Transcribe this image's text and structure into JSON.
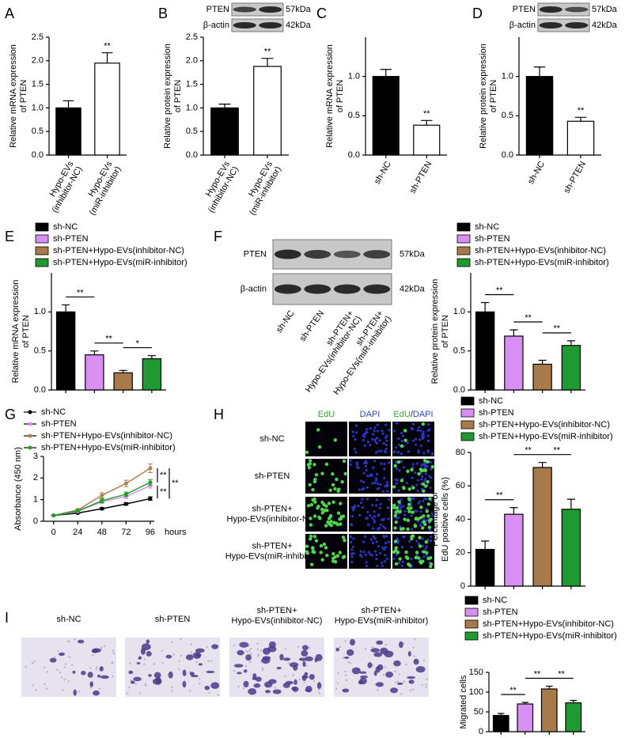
{
  "panel_labels": [
    "A",
    "B",
    "C",
    "D",
    "E",
    "F",
    "G",
    "H",
    "I"
  ],
  "blots": [
    {
      "bands": [
        "PTEN",
        "β-actin"
      ],
      "sizes": [
        "57kDa",
        "42kDa"
      ]
    },
    {
      "bands": [
        "PTEN",
        "β-actin"
      ],
      "sizes": [
        "57kDa",
        "42kDa"
      ]
    },
    {
      "bands": [
        "PTEN",
        "β-actin"
      ],
      "sizes": [
        "57kDa",
        "42kDa"
      ],
      "lanes": [
        [
          "sh-NC"
        ],
        [
          "sh-PTEN"
        ],
        [
          "sh-PTEN+",
          "Hypo-EVs(inhibitor-NC)"
        ],
        [
          "sh-PTEN+",
          "Hypo-EVs(miR-inhibitor)"
        ]
      ]
    }
  ],
  "edu": {
    "columns": [
      [
        "EdU"
      ],
      [
        "DAPI"
      ],
      [
        "EdU",
        "/",
        "DAPI"
      ]
    ],
    "rows": [
      [
        "sh-NC"
      ],
      [
        "sh-PTEN"
      ],
      [
        "sh-PTEN+",
        "Hypo-EVs(inhibitor-NC)"
      ],
      [
        "sh-PTEN+",
        "Hypo-EVs(miR-inhibitor)"
      ]
    ]
  },
  "transwell": {
    "labels": [
      [
        "sh-NC"
      ],
      [
        "sh-PTEN"
      ],
      [
        "sh-PTEN+",
        "Hypo-EVs(inhibitor-NC)"
      ],
      [
        "sh-PTEN+",
        "Hypo-EVs(miR-inhibitor)"
      ]
    ]
  },
  "chart_data": [
    {
      "type": "bar",
      "ylabel": [
        "Relative mRNA expression",
        "of PTEN"
      ],
      "categories": [
        [
          "Hypo-EVs",
          "(inhibitor-NC)"
        ],
        [
          "Hypo-EVs",
          "(miR-inhibitor)"
        ]
      ],
      "values": [
        1.0,
        1.95
      ],
      "errors": [
        0.15,
        0.22
      ],
      "colors": [
        "#000000",
        "#ffffff"
      ],
      "ylim": [
        0,
        2.5
      ],
      "yticks": [
        {
          "value": 0,
          "label": "0.0"
        },
        0.5,
        {
          "value": 1,
          "label": "1.0"
        },
        1.5,
        {
          "value": 2,
          "label": "2.0"
        },
        2.5
      ],
      "annotations": [
        {
          "text": "**",
          "at": 1
        }
      ]
    },
    {
      "type": "bar",
      "ylabel": [
        "Relative protein expression",
        "of PTEN"
      ],
      "categories": [
        [
          "Hypo-EVs",
          "(inhibitor-NC)"
        ],
        [
          "Hypo-EVs",
          "(miR-inhibitor)"
        ]
      ],
      "values": [
        1.0,
        1.88
      ],
      "errors": [
        0.08,
        0.17
      ],
      "colors": [
        "#000000",
        "#ffffff"
      ],
      "ylim": [
        0,
        2.5
      ],
      "yticks": [
        {
          "value": 0,
          "label": "0.0"
        },
        0.5,
        {
          "value": 1,
          "label": "1.0"
        },
        1.5,
        {
          "value": 2,
          "label": "2.0"
        },
        2.5
      ],
      "annotations": [
        {
          "text": "**",
          "at": 1
        }
      ]
    },
    {
      "type": "bar",
      "ylabel": [
        "Relative mRNA expression",
        "of PTEN"
      ],
      "categories": [
        [
          "sh-NC"
        ],
        [
          "sh-PTEN"
        ]
      ],
      "values": [
        1.0,
        0.38
      ],
      "errors": [
        0.09,
        0.06
      ],
      "colors": [
        "#000000",
        "#ffffff"
      ],
      "ylim": [
        0,
        1.5
      ],
      "yticks": [
        {
          "value": 0,
          "label": "0.0"
        },
        0.5,
        {
          "value": 1,
          "label": "1.0"
        }
      ],
      "annotations": [
        {
          "text": "**",
          "at": 1
        }
      ]
    },
    {
      "type": "bar",
      "ylabel": [
        "Relative protein expression",
        "of PTEN"
      ],
      "categories": [
        [
          "sh-NC"
        ],
        [
          "sh-PTEN"
        ]
      ],
      "values": [
        1.0,
        0.43
      ],
      "errors": [
        0.12,
        0.05
      ],
      "colors": [
        "#000000",
        "#ffffff"
      ],
      "ylim": [
        0,
        1.5
      ],
      "yticks": [
        {
          "value": 0,
          "label": "0.0"
        },
        0.5,
        {
          "value": 1,
          "label": "1.0"
        }
      ],
      "annotations": [
        {
          "text": "**",
          "at": 1
        }
      ]
    },
    {
      "type": "bar",
      "ylabel": [
        "Relative mRNA expression",
        "of PTEN"
      ],
      "legend": "top-left",
      "categories": [
        "sh-NC",
        "sh-PTEN",
        "sh-PTEN+Hypo-EVs(inhibitor-NC)",
        "sh-PTEN+Hypo-EVs(miR-inhibitor)"
      ],
      "values": [
        1.0,
        0.45,
        0.22,
        0.4
      ],
      "errors": [
        0.09,
        0.05,
        0.03,
        0.04
      ],
      "colors": [
        "#000000",
        "#d88ef2",
        "#a87a4a",
        "#1f9a30"
      ],
      "ylim": [
        0,
        1.5
      ],
      "yticks": [
        {
          "value": 0,
          "label": "0.0"
        },
        0.5,
        {
          "value": 1,
          "label": "1.0"
        }
      ],
      "annotations": [
        {
          "text": "**",
          "from": 0,
          "to": 1
        },
        {
          "text": "**",
          "from": 1,
          "to": 2
        },
        {
          "text": "*",
          "from": 2,
          "to": 3
        }
      ]
    },
    {
      "type": "bar",
      "ylabel": [
        "Relative protein expression",
        "of PTEN"
      ],
      "legend": "top-left",
      "categories": [
        "sh-NC",
        "sh-PTEN",
        "sh-PTEN+Hypo-EVs(inhibitor-NC)",
        "sh-PTEN+Hypo-EVs(miR-inhibitor)"
      ],
      "values": [
        1.0,
        0.69,
        0.33,
        0.57
      ],
      "errors": [
        0.12,
        0.08,
        0.05,
        0.06
      ],
      "colors": [
        "#000000",
        "#d88ef2",
        "#a87a4a",
        "#1f9a30"
      ],
      "ylim": [
        0,
        1.5
      ],
      "yticks": [
        {
          "value": 0,
          "label": "0.0"
        },
        0.5,
        {
          "value": 1,
          "label": "1.0"
        }
      ],
      "annotations": [
        {
          "text": "**",
          "from": 0,
          "to": 1
        },
        {
          "text": "**",
          "from": 1,
          "to": 2
        },
        {
          "text": "**",
          "from": 2,
          "to": 3
        }
      ]
    },
    {
      "type": "line",
      "ylabel": [
        "Absorbance (450 nm)"
      ],
      "xlabel": "hours",
      "legend": "top-left",
      "x": [
        0,
        24,
        48,
        72,
        96
      ],
      "xlim": [
        -10,
        100
      ],
      "xticks": [
        0,
        24,
        48,
        72,
        96
      ],
      "ylim": [
        0,
        3
      ],
      "yticks": [
        0,
        1,
        2,
        3
      ],
      "series": [
        {
          "name": "sh-NC",
          "color": "#000000",
          "values": [
            0.27,
            0.38,
            0.58,
            0.8,
            1.05
          ],
          "errors": [
            0.02,
            0.03,
            0.05,
            0.06,
            0.08
          ]
        },
        {
          "name": "sh-PTEN",
          "color": "#d88ef2",
          "values": [
            0.27,
            0.45,
            0.9,
            1.15,
            1.65
          ],
          "errors": [
            0.02,
            0.04,
            0.08,
            0.1,
            0.12
          ]
        },
        {
          "name": "sh-PTEN+Hypo-EVs(inhibitor-NC)",
          "color": "#b08050",
          "values": [
            0.27,
            0.52,
            1.2,
            1.75,
            2.45
          ],
          "errors": [
            0.02,
            0.06,
            0.12,
            0.15,
            0.2
          ]
        },
        {
          "name": "sh-PTEN+Hypo-EVs(miR-inhibitor)",
          "color": "#22a02a",
          "values": [
            0.27,
            0.48,
            0.95,
            1.25,
            1.8
          ],
          "errors": [
            0.02,
            0.05,
            0.09,
            0.1,
            0.13
          ]
        }
      ],
      "annotations": [
        {
          "text": "**",
          "from": 2,
          "to": 3
        },
        {
          "text": "**",
          "from": 1,
          "to": 0
        },
        {
          "text": "**",
          "from": 2,
          "to": 0
        }
      ]
    },
    {
      "type": "bar",
      "ylabel": [
        "Percentage of",
        "EdU positive cells (%)"
      ],
      "legend": "top-left",
      "categories": [
        "sh-NC",
        "sh-PTEN",
        "sh-PTEN+Hypo-EVs(inhibitor-NC)",
        "sh-PTEN+Hypo-EVs(miR-inhibitor)"
      ],
      "values": [
        22,
        43,
        71,
        46
      ],
      "errors": [
        5,
        4,
        3,
        6
      ],
      "colors": [
        "#000000",
        "#d88ef2",
        "#a87a4a",
        "#1f9a30"
      ],
      "ylim": [
        0,
        80
      ],
      "yticks": [
        0,
        20,
        40,
        60,
        80
      ],
      "annotations": [
        {
          "text": "**",
          "from": 0,
          "to": 1
        },
        {
          "text": "**",
          "from": 1,
          "to": 2
        },
        {
          "text": "**",
          "from": 2,
          "to": 3
        }
      ]
    },
    {
      "type": "bar",
      "ylabel": [
        "Migrated cells"
      ],
      "legend": "top-left",
      "categories": [
        "sh-NC",
        "sh-PTEN",
        "sh-PTEN+Hypo-EVs(inhibitor-NC)",
        "sh-PTEN+Hypo-EVs(miR-inhibitor)"
      ],
      "values": [
        41,
        70,
        108,
        73
      ],
      "errors": [
        5,
        4,
        7,
        6
      ],
      "colors": [
        "#000000",
        "#d88ef2",
        "#a87a4a",
        "#1f9a30"
      ],
      "ylim": [
        0,
        150
      ],
      "yticks": [
        0,
        50,
        100,
        150
      ],
      "annotations": [
        {
          "text": "**",
          "from": 0,
          "to": 1
        },
        {
          "text": "**",
          "from": 1,
          "to": 2
        },
        {
          "text": "**",
          "from": 2,
          "to": 3
        }
      ]
    }
  ]
}
